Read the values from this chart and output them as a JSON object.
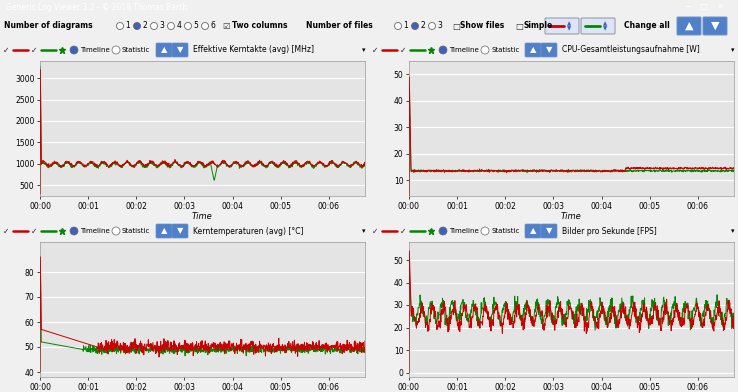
{
  "title_bar": "Generic Log Viewer 3.2 - © 2018 Thomas Barth",
  "bg_color": "#f0f0f0",
  "plot_bg": "#e4e4e4",
  "grid_color": "#ffffff",
  "red_color": "#cc0000",
  "green_color": "#008800",
  "plots": [
    {
      "title": "Effektive Kerntakte (avg) [MHz]",
      "yticks": [
        500,
        1000,
        1500,
        2000,
        2500,
        3000
      ],
      "ylim": [
        250,
        3400
      ],
      "red_spike": 3200,
      "red_stable": 1000,
      "red_noise": 55,
      "green_spike": 3280,
      "green_stable": 980,
      "green_noise": 55,
      "green_dip_t": 3.55,
      "green_dip_v": 620,
      "osc_period": 0.25,
      "osc_amp": 50
    },
    {
      "title": "CPU-Gesamtleistungsaufnahme [W]",
      "yticks": [
        10,
        20,
        30,
        40,
        50
      ],
      "ylim": [
        4,
        55
      ],
      "red_spike": 49,
      "red_stable": 14.5,
      "red_noise": 0.2,
      "green_spike": 46,
      "green_stable": 13.5,
      "green_noise": 0.2,
      "red_split_t": 4.5
    },
    {
      "title": "Kerntemperaturen (avg) [°C]",
      "yticks": [
        40,
        50,
        60,
        70,
        80
      ],
      "ylim": [
        38,
        92
      ],
      "red_spike": 86,
      "red_stable": 50,
      "red_noise": 1.2,
      "green_spike": 86,
      "green_stable": 49,
      "green_noise": 0.8,
      "red_slow_decay": true,
      "green_slow_decay": true,
      "red_mid": 57,
      "green_mid": 52,
      "red_decay_t": 1.2,
      "green_decay_t": 0.9
    },
    {
      "title": "Bilder pro Sekunde [FPS]",
      "yticks": [
        0,
        10,
        20,
        30,
        40,
        50
      ],
      "ylim": [
        -2,
        58
      ],
      "red_spike": 54,
      "red_stable": 25,
      "red_noise": 3,
      "green_spike": 44,
      "green_stable": 27,
      "green_noise": 3,
      "osc_period": 0.22,
      "osc_amp": 4
    }
  ],
  "time_ticks": [
    "00:00",
    "00:01",
    "00:02",
    "00:03",
    "00:04",
    "00:05",
    "00:06"
  ],
  "time_tick_vals": [
    0,
    1,
    2,
    3,
    4,
    5,
    6
  ],
  "time_max": 6.75
}
